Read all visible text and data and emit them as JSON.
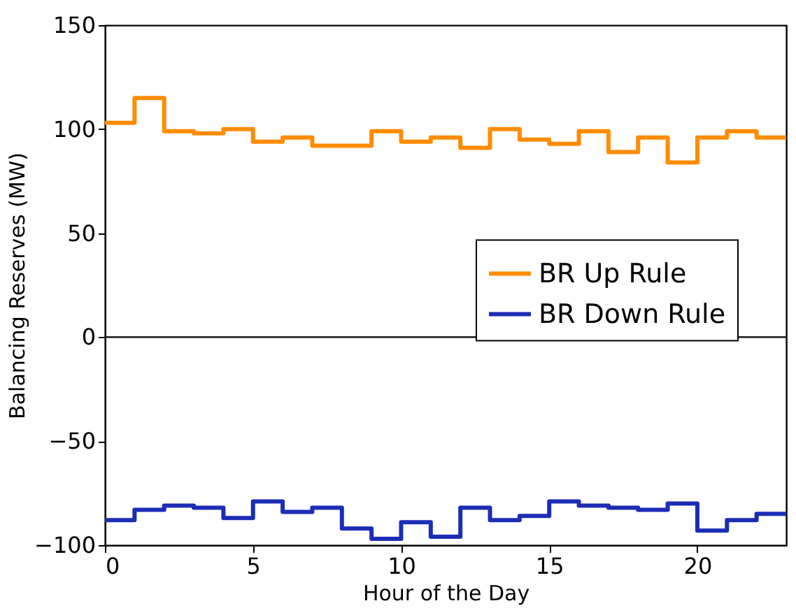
{
  "chart_data": {
    "type": "step",
    "xlabel": "Hour of the Day",
    "ylabel": "Balancing Reserves (MW)",
    "x": [
      0,
      1,
      2,
      3,
      4,
      5,
      6,
      7,
      8,
      9,
      10,
      11,
      12,
      13,
      14,
      15,
      16,
      17,
      18,
      19,
      20,
      21,
      22,
      23
    ],
    "series": [
      {
        "name": "BR Up Rule",
        "color": "#ff8c00",
        "values": [
          103,
          115,
          99,
          98,
          100,
          94,
          96,
          92,
          92,
          99,
          94,
          96,
          91,
          100,
          95,
          93,
          99,
          89,
          96,
          84,
          96,
          99,
          96,
          96
        ]
      },
      {
        "name": "BR Down Rule",
        "color": "#1c2db5",
        "values": [
          -88,
          -83,
          -81,
          -82,
          -87,
          -79,
          -84,
          -82,
          -92,
          -97,
          -89,
          -96,
          -82,
          -88,
          -86,
          -79,
          -81,
          -82,
          -83,
          -80,
          -93,
          -88,
          -85,
          -85
        ]
      }
    ],
    "xlim": [
      0,
      23
    ],
    "xticks": [
      0,
      5,
      10,
      15,
      20
    ],
    "ylim": [
      -100,
      150
    ],
    "yticks": [
      -100,
      -50,
      0,
      50,
      100,
      150
    ],
    "ref_lines": [
      {
        "axis": "y",
        "value": 0,
        "color": "#000000"
      }
    ],
    "legend": "center right",
    "grid": false
  }
}
